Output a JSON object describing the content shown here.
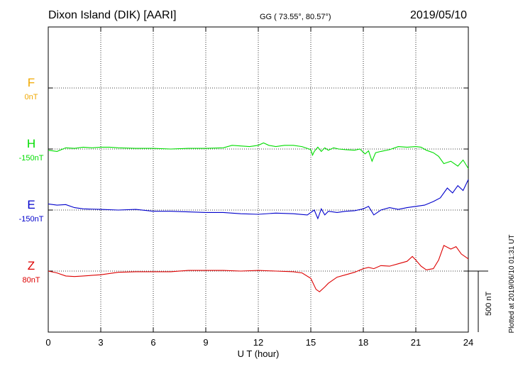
{
  "header": {
    "title": "Dixon Island (DIK)  [AARI]",
    "coords": "GG ( 73.55°,  80.57°)",
    "date": "2019/05/10"
  },
  "plotted_note": "Plotted at 2019/06/10 01:31  UT",
  "colors": {
    "F": "#f0a800",
    "H": "#00dd00",
    "E": "#0000cc",
    "Z": "#dd0000"
  },
  "chart_data": {
    "type": "line",
    "xlabel": "U T (hour)",
    "xlim": [
      0,
      24
    ],
    "xticks": [
      0,
      3,
      6,
      9,
      12,
      15,
      18,
      21,
      24
    ],
    "scale_bar": {
      "label": "500 nT",
      "nT": 500
    },
    "grid": "dotted",
    "series": [
      {
        "name": "F",
        "baseline_label": "0nT",
        "color": "#f0a800",
        "points": []
      },
      {
        "name": "H",
        "baseline_label": "-150nT",
        "color": "#00dd00",
        "points": [
          [
            0,
            -10
          ],
          [
            0.5,
            -20
          ],
          [
            1,
            10
          ],
          [
            1.5,
            5
          ],
          [
            2,
            15
          ],
          [
            2.5,
            10
          ],
          [
            3,
            15
          ],
          [
            3.5,
            15
          ],
          [
            4,
            10
          ],
          [
            5,
            5
          ],
          [
            6,
            5
          ],
          [
            7,
            0
          ],
          [
            8,
            5
          ],
          [
            9,
            5
          ],
          [
            10,
            10
          ],
          [
            10.5,
            30
          ],
          [
            11,
            25
          ],
          [
            11.5,
            20
          ],
          [
            12,
            30
          ],
          [
            12.3,
            50
          ],
          [
            12.6,
            30
          ],
          [
            13,
            20
          ],
          [
            13.5,
            30
          ],
          [
            14,
            30
          ],
          [
            14.5,
            20
          ],
          [
            14.8,
            5
          ],
          [
            15,
            -5
          ],
          [
            15.1,
            -50
          ],
          [
            15.2,
            -20
          ],
          [
            15.4,
            15
          ],
          [
            15.6,
            -20
          ],
          [
            15.8,
            10
          ],
          [
            16,
            -10
          ],
          [
            16.3,
            10
          ],
          [
            16.6,
            0
          ],
          [
            17,
            -5
          ],
          [
            17.5,
            -10
          ],
          [
            17.8,
            0
          ],
          [
            18.1,
            -40
          ],
          [
            18.3,
            -15
          ],
          [
            18.5,
            -100
          ],
          [
            18.7,
            -30
          ],
          [
            19,
            -20
          ],
          [
            19.5,
            -5
          ],
          [
            20,
            20
          ],
          [
            20.5,
            15
          ],
          [
            21,
            20
          ],
          [
            21.3,
            15
          ],
          [
            21.6,
            -10
          ],
          [
            22,
            -30
          ],
          [
            22.3,
            -60
          ],
          [
            22.6,
            -120
          ],
          [
            23,
            -100
          ],
          [
            23.4,
            -140
          ],
          [
            23.7,
            -90
          ],
          [
            24,
            -160
          ]
        ]
      },
      {
        "name": "E",
        "baseline_label": "-150nT",
        "color": "#0000cc",
        "points": [
          [
            0,
            50
          ],
          [
            0.5,
            40
          ],
          [
            1,
            45
          ],
          [
            1.5,
            20
          ],
          [
            2,
            10
          ],
          [
            3,
            5
          ],
          [
            4,
            0
          ],
          [
            5,
            5
          ],
          [
            6,
            -10
          ],
          [
            7,
            -10
          ],
          [
            8,
            -15
          ],
          [
            9,
            -20
          ],
          [
            10,
            -20
          ],
          [
            11,
            -30
          ],
          [
            12,
            -35
          ],
          [
            13,
            -25
          ],
          [
            14,
            -30
          ],
          [
            14.8,
            -40
          ],
          [
            15,
            -20
          ],
          [
            15.2,
            0
          ],
          [
            15.4,
            -70
          ],
          [
            15.6,
            10
          ],
          [
            15.8,
            -40
          ],
          [
            16,
            -10
          ],
          [
            16.5,
            -20
          ],
          [
            17,
            -10
          ],
          [
            17.5,
            -5
          ],
          [
            18,
            10
          ],
          [
            18.3,
            30
          ],
          [
            18.6,
            -40
          ],
          [
            19,
            0
          ],
          [
            19.5,
            20
          ],
          [
            20,
            5
          ],
          [
            20.5,
            20
          ],
          [
            21,
            30
          ],
          [
            21.5,
            40
          ],
          [
            22,
            70
          ],
          [
            22.4,
            100
          ],
          [
            22.8,
            180
          ],
          [
            23.1,
            140
          ],
          [
            23.4,
            200
          ],
          [
            23.7,
            160
          ],
          [
            24,
            250
          ]
        ]
      },
      {
        "name": "Z",
        "baseline_label": "80nT",
        "color": "#dd0000",
        "points": [
          [
            0,
            0
          ],
          [
            0.5,
            -15
          ],
          [
            1,
            -40
          ],
          [
            1.5,
            -45
          ],
          [
            2,
            -40
          ],
          [
            3,
            -30
          ],
          [
            4,
            -10
          ],
          [
            5,
            -5
          ],
          [
            6,
            -5
          ],
          [
            7,
            -5
          ],
          [
            8,
            5
          ],
          [
            9,
            5
          ],
          [
            10,
            5
          ],
          [
            11,
            0
          ],
          [
            12,
            5
          ],
          [
            13,
            0
          ],
          [
            14,
            -5
          ],
          [
            14.5,
            -15
          ],
          [
            15,
            -60
          ],
          [
            15.3,
            -150
          ],
          [
            15.5,
            -170
          ],
          [
            15.8,
            -130
          ],
          [
            16,
            -100
          ],
          [
            16.5,
            -50
          ],
          [
            17,
            -30
          ],
          [
            17.5,
            -10
          ],
          [
            18,
            20
          ],
          [
            18.3,
            30
          ],
          [
            18.6,
            20
          ],
          [
            19,
            45
          ],
          [
            19.5,
            40
          ],
          [
            20,
            60
          ],
          [
            20.5,
            80
          ],
          [
            20.8,
            120
          ],
          [
            21,
            90
          ],
          [
            21.3,
            40
          ],
          [
            21.6,
            10
          ],
          [
            22,
            20
          ],
          [
            22.3,
            90
          ],
          [
            22.6,
            210
          ],
          [
            23,
            180
          ],
          [
            23.3,
            200
          ],
          [
            23.6,
            140
          ],
          [
            24,
            100
          ]
        ]
      }
    ]
  }
}
